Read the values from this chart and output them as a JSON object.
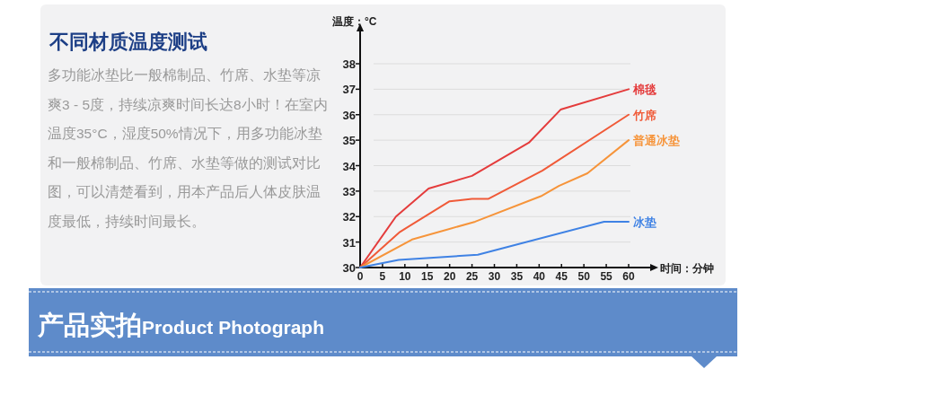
{
  "chart_data": {
    "type": "line",
    "title": "不同材质温度测试",
    "xlabel": "时间：分钟",
    "ylabel": "温度：°C",
    "xlim": [
      0,
      60
    ],
    "xticks": [
      0,
      5,
      10,
      15,
      20,
      25,
      30,
      35,
      40,
      45,
      50,
      55,
      60
    ],
    "ylim": [
      30,
      38
    ],
    "yticks": [
      30,
      31,
      32,
      33,
      34,
      35,
      36,
      37,
      38
    ],
    "grid": "y",
    "marker": "none",
    "line_style": "solid",
    "series": [
      {
        "name": "棉毯",
        "color": "#e43c3c",
        "x": [
          0,
          8,
          15.3,
          25,
          37.7,
          44.8,
          60
        ],
        "values": [
          30,
          32.0,
          33.1,
          33.6,
          34.9,
          36.2,
          37
        ]
      },
      {
        "name": "竹席",
        "color": "#f05a38",
        "x": [
          0,
          8.9,
          20,
          25,
          28.7,
          40.7,
          60
        ],
        "values": [
          30,
          31.4,
          32.6,
          32.7,
          32.7,
          33.8,
          36
        ]
      },
      {
        "name": "普通冰垫",
        "color": "#f6943a",
        "x": [
          0,
          11.6,
          25.7,
          40.4,
          44.4,
          50.8,
          60
        ],
        "values": [
          30,
          31.1,
          31.8,
          32.8,
          33.2,
          33.7,
          35
        ]
      },
      {
        "name": "冰垫",
        "color": "#3f82e4",
        "x": [
          0,
          8.6,
          26.3,
          54.5,
          60
        ],
        "values": [
          30,
          30.3,
          30.5,
          31.8,
          31.8
        ]
      }
    ],
    "annotations": [
      "多功能冰垫比一般棉制品、竹席、水垫等凉爽3 - 5度，持续凉爽时间长达8小时！在室内温度35°C，湿度50%情况下，用多功能冰垫和一般棉制品、竹席、水垫等做的测试对比图，可以清楚看到，用本产品后人体皮肤温度最低，持续时间最长。",
      "产品实拍Product Photograph"
    ]
  }
}
